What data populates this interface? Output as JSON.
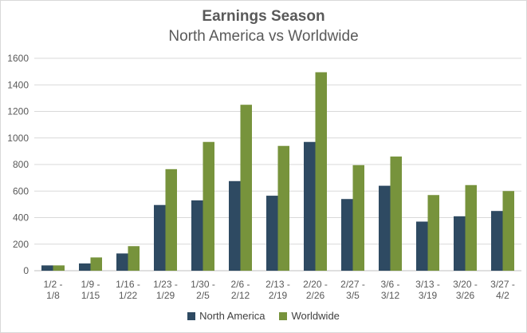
{
  "chart_data": {
    "type": "bar",
    "title": "Earnings Season",
    "subtitle": "North America vs Worldwide",
    "categories": [
      [
        "1/2 -",
        "1/8"
      ],
      [
        "1/9 -",
        "1/15"
      ],
      [
        "1/16 -",
        "1/22"
      ],
      [
        "1/23 -",
        "1/29"
      ],
      [
        "1/30 -",
        "2/5"
      ],
      [
        "2/6 -",
        "2/12"
      ],
      [
        "2/13 -",
        "2/19"
      ],
      [
        "2/20 -",
        "2/26"
      ],
      [
        "2/27 -",
        "3/5"
      ],
      [
        "3/6 -",
        "3/12"
      ],
      [
        "3/13 -",
        "3/19"
      ],
      [
        "3/20 -",
        "3/26"
      ],
      [
        "3/27 -",
        "4/2"
      ]
    ],
    "series": [
      {
        "name": "North America",
        "color": "#2e4a62",
        "values": [
          40,
          55,
          130,
          495,
          530,
          675,
          565,
          970,
          540,
          640,
          370,
          410,
          450
        ]
      },
      {
        "name": "Worldwide",
        "color": "#77933c",
        "values": [
          40,
          100,
          185,
          765,
          970,
          1250,
          940,
          1495,
          795,
          860,
          570,
          645,
          600
        ]
      }
    ],
    "ylim": [
      0,
      1600
    ],
    "yticks": [
      0,
      200,
      400,
      600,
      800,
      1000,
      1200,
      1400,
      1600
    ],
    "grid": true,
    "legend_position": "bottom"
  }
}
